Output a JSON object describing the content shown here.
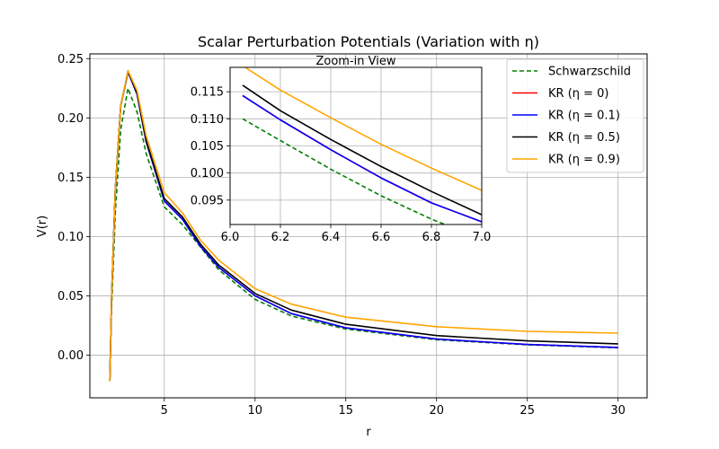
{
  "chart_data": {
    "type": "line",
    "title": "Scalar Perturbation Potentials (Variation with η)",
    "xlabel": "r",
    "ylabel": "V(r)",
    "xlim": [
      0.9,
      31.6
    ],
    "ylim": [
      -0.036,
      0.254
    ],
    "grid": true,
    "legend_position": "top-right",
    "x_ticks": [
      5,
      10,
      15,
      20,
      25,
      30
    ],
    "x_tick_labels": [
      "5",
      "10",
      "15",
      "20",
      "25",
      "30"
    ],
    "y_ticks": [
      0.0,
      0.05,
      0.1,
      0.15,
      0.2,
      0.25
    ],
    "y_tick_labels": [
      "0.00",
      "0.05",
      "0.10",
      "0.15",
      "0.20",
      "0.25"
    ],
    "series": [
      {
        "name": "Schwarzschild",
        "legend_label": "Schwarzschild",
        "color": "#008000",
        "dashed": true,
        "x": [
          2.0,
          2.1,
          2.3,
          2.6,
          3.0,
          3.5,
          4.0,
          5.0,
          6.0,
          7.0,
          8.0,
          10.0,
          12.0,
          15.0,
          20.0,
          25.0,
          30.0
        ],
        "y": [
          -0.021,
          0.04,
          0.12,
          0.19,
          0.225,
          0.205,
          0.17,
          0.125,
          0.11,
          0.091,
          0.072,
          0.047,
          0.033,
          0.022,
          0.013,
          0.0087,
          0.0062
        ]
      },
      {
        "name": "KR (eta=0)",
        "legend_label": "KR (η = 0)",
        "color": "#ff0000",
        "dashed": false,
        "x": [
          2.0,
          2.1,
          2.3,
          2.6,
          3.0,
          3.5,
          4.0,
          5.0,
          6.0,
          7.0,
          8.0,
          10.0,
          12.0,
          15.0,
          20.0,
          25.0,
          30.0
        ],
        "y": [
          -0.022,
          0.05,
          0.14,
          0.21,
          0.239,
          0.22,
          0.18,
          0.13,
          0.1145,
          0.0915,
          0.074,
          0.05,
          0.035,
          0.023,
          0.0135,
          0.009,
          0.0065
        ]
      },
      {
        "name": "KR (eta=0.1)",
        "legend_label": "KR (η = 0.1)",
        "color": "#0000ff",
        "dashed": false,
        "x": [
          2.0,
          2.1,
          2.3,
          2.6,
          3.0,
          3.5,
          4.0,
          5.0,
          6.0,
          7.0,
          8.0,
          10.0,
          12.0,
          15.0,
          20.0,
          25.0,
          30.0
        ],
        "y": [
          -0.022,
          0.05,
          0.14,
          0.21,
          0.239,
          0.22,
          0.18,
          0.13,
          0.1145,
          0.0915,
          0.074,
          0.05,
          0.035,
          0.023,
          0.0135,
          0.009,
          0.0065
        ]
      },
      {
        "name": "KR (eta=0.5)",
        "legend_label": "KR (η = 0.5)",
        "color": "#000000",
        "dashed": false,
        "x": [
          2.0,
          2.1,
          2.3,
          2.6,
          3.0,
          3.5,
          4.0,
          5.0,
          6.0,
          7.0,
          8.0,
          10.0,
          12.0,
          15.0,
          20.0,
          25.0,
          30.0
        ],
        "y": [
          -0.022,
          0.05,
          0.14,
          0.21,
          0.239,
          0.221,
          0.181,
          0.132,
          0.1165,
          0.0935,
          0.076,
          0.052,
          0.038,
          0.026,
          0.0165,
          0.012,
          0.0095
        ]
      },
      {
        "name": "KR (eta=0.9)",
        "legend_label": "KR (η = 0.9)",
        "color": "#ffa500",
        "dashed": false,
        "x": [
          2.0,
          2.1,
          2.3,
          2.6,
          3.0,
          3.5,
          4.0,
          5.0,
          6.0,
          7.0,
          8.0,
          10.0,
          12.0,
          15.0,
          20.0,
          25.0,
          30.0
        ],
        "y": [
          -0.022,
          0.05,
          0.14,
          0.21,
          0.24,
          0.223,
          0.185,
          0.137,
          0.12,
          0.0968,
          0.08,
          0.056,
          0.043,
          0.032,
          0.024,
          0.02,
          0.0185
        ]
      }
    ],
    "inset": {
      "title": "Zoom-in View",
      "xlim": [
        6.0,
        7.0
      ],
      "ylim": [
        0.0905,
        0.1195
      ],
      "grid": true,
      "x_ticks": [
        6.0,
        6.2,
        6.4,
        6.6,
        6.8,
        7.0
      ],
      "x_tick_labels": [
        "6.0",
        "6.2",
        "6.4",
        "6.6",
        "6.8",
        "7.0"
      ],
      "y_ticks": [
        0.095,
        0.1,
        0.105,
        0.11,
        0.115
      ],
      "y_tick_labels": [
        "0.095",
        "0.100",
        "0.105",
        "0.110",
        "0.115"
      ],
      "series": [
        {
          "name": "Schwarzschild",
          "color": "#008000",
          "dashed": true,
          "x": [
            6.05,
            6.2,
            6.4,
            6.6,
            6.8,
            6.87
          ],
          "y": [
            0.11,
            0.106,
            0.1007,
            0.0958,
            0.0915,
            0.0902
          ]
        },
        {
          "name": "KR (eta=0)",
          "color": "#ff0000",
          "dashed": false,
          "x": [
            6.05,
            6.2,
            6.4,
            6.6,
            6.8,
            7.0
          ],
          "y": [
            0.1143,
            0.1098,
            0.1043,
            0.0991,
            0.0945,
            0.091
          ]
        },
        {
          "name": "KR (eta=0.1)",
          "color": "#0000ff",
          "dashed": false,
          "x": [
            6.05,
            6.2,
            6.4,
            6.6,
            6.8,
            7.0
          ],
          "y": [
            0.1143,
            0.1098,
            0.1043,
            0.0991,
            0.0945,
            0.091
          ]
        },
        {
          "name": "KR (eta=0.5)",
          "color": "#000000",
          "dashed": false,
          "x": [
            6.05,
            6.2,
            6.4,
            6.6,
            6.8,
            7.0
          ],
          "y": [
            0.1162,
            0.1115,
            0.1062,
            0.1012,
            0.0966,
            0.0923
          ]
        },
        {
          "name": "KR (eta=0.9)",
          "color": "#ffa500",
          "dashed": false,
          "x": [
            6.05,
            6.2,
            6.4,
            6.6,
            6.8,
            7.0
          ],
          "y": [
            0.1198,
            0.1153,
            0.1102,
            0.1053,
            0.1009,
            0.0968
          ]
        }
      ]
    }
  }
}
